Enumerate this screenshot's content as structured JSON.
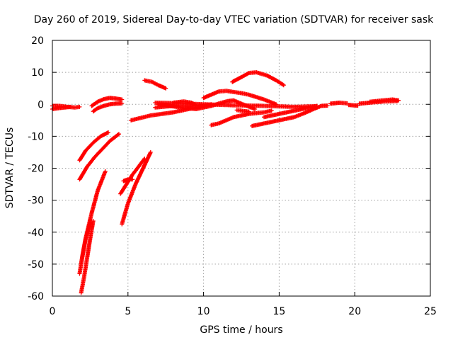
{
  "chart_data": {
    "type": "scatter",
    "title": "Day 260 of 2019, Sidereal Day-to-day VTEC variation (SDTVAR) for receiver sask",
    "xlabel": "GPS time / hours",
    "ylabel": "SDTVAR / TECUs",
    "xlim": [
      0,
      25
    ],
    "ylim": [
      -60,
      20
    ],
    "xticks": [
      0,
      5,
      10,
      15,
      20,
      25
    ],
    "yticks": [
      -60,
      -50,
      -40,
      -30,
      -20,
      -10,
      0,
      10,
      20
    ],
    "grid": true,
    "marker": "+",
    "color": "#ff0000",
    "arcs": [
      [
        [
          0.0,
          -0.5
        ],
        [
          0.5,
          -0.5
        ],
        [
          1.0,
          -0.8
        ],
        [
          1.5,
          -1.0
        ],
        [
          1.8,
          -0.8
        ]
      ],
      [
        [
          0.0,
          -1.5
        ],
        [
          0.4,
          -1.2
        ],
        [
          0.8,
          -1.0
        ],
        [
          1.2,
          -0.8
        ]
      ],
      [
        [
          2.7,
          -2.2
        ],
        [
          3.0,
          -1.2
        ],
        [
          3.4,
          -0.5
        ],
        [
          3.8,
          0.0
        ],
        [
          4.2,
          0.2
        ],
        [
          4.6,
          0.3
        ]
      ],
      [
        [
          2.6,
          -0.5
        ],
        [
          3.0,
          0.8
        ],
        [
          3.4,
          1.6
        ],
        [
          3.8,
          2.0
        ],
        [
          4.2,
          1.8
        ],
        [
          4.6,
          1.5
        ]
      ],
      [
        [
          1.8,
          -17.5
        ],
        [
          2.2,
          -14.5
        ],
        [
          2.7,
          -12.0
        ],
        [
          3.2,
          -10.0
        ],
        [
          3.7,
          -8.8
        ]
      ],
      [
        [
          1.8,
          -23.5
        ],
        [
          2.3,
          -19.5
        ],
        [
          2.8,
          -16.5
        ],
        [
          3.3,
          -14.0
        ],
        [
          3.8,
          -11.5
        ],
        [
          4.4,
          -9.3
        ]
      ],
      [
        [
          1.9,
          -59.0
        ],
        [
          2.1,
          -54.0
        ],
        [
          2.3,
          -48.0
        ],
        [
          2.5,
          -42.0
        ],
        [
          2.7,
          -36.5
        ]
      ],
      [
        [
          1.9,
          -50.0
        ],
        [
          2.2,
          -42.0
        ],
        [
          2.6,
          -34.0
        ],
        [
          3.0,
          -27.0
        ],
        [
          3.5,
          -21.0
        ]
      ],
      [
        [
          1.8,
          -53.0
        ],
        [
          2.0,
          -47.0
        ],
        [
          2.2,
          -42.0
        ],
        [
          2.5,
          -37.0
        ]
      ],
      [
        [
          4.6,
          -37.5
        ],
        [
          5.0,
          -31.0
        ],
        [
          5.5,
          -25.0
        ],
        [
          6.0,
          -20.0
        ],
        [
          6.5,
          -15.0
        ]
      ],
      [
        [
          4.5,
          -28.0
        ],
        [
          4.9,
          -25.0
        ],
        [
          5.3,
          -22.0
        ],
        [
          5.7,
          -19.5
        ],
        [
          6.1,
          -17.0
        ]
      ],
      [
        [
          4.7,
          -24.0
        ],
        [
          5.0,
          -23.5
        ],
        [
          5.3,
          -23.5
        ]
      ],
      [
        [
          6.1,
          7.5
        ],
        [
          6.6,
          7.0
        ],
        [
          7.0,
          6.0
        ],
        [
          7.5,
          5.0
        ]
      ],
      [
        [
          5.2,
          -5.0
        ],
        [
          6.5,
          -3.5
        ],
        [
          8.0,
          -2.5
        ],
        [
          9.5,
          -1.0
        ],
        [
          10.5,
          0.0
        ]
      ],
      [
        [
          6.8,
          -1.0
        ],
        [
          8.0,
          -0.5
        ],
        [
          9.0,
          -0.6
        ],
        [
          10.0,
          -0.3
        ]
      ],
      [
        [
          6.8,
          0.5
        ],
        [
          8.5,
          0.3
        ],
        [
          10.0,
          0.0
        ],
        [
          12.0,
          -0.3
        ],
        [
          14.0,
          -0.5
        ],
        [
          16.0,
          -0.8
        ],
        [
          17.5,
          -0.6
        ]
      ],
      [
        [
          7.0,
          0.0
        ],
        [
          8.5,
          -1.0
        ],
        [
          9.5,
          -1.5
        ],
        [
          10.5,
          -0.5
        ]
      ],
      [
        [
          8.0,
          0.5
        ],
        [
          8.7,
          0.9
        ],
        [
          9.2,
          0.5
        ],
        [
          9.5,
          -0.3
        ]
      ],
      [
        [
          10.0,
          2.0
        ],
        [
          10.5,
          3.0
        ],
        [
          11.0,
          4.0
        ],
        [
          11.5,
          4.2
        ],
        [
          12.5,
          3.5
        ],
        [
          13.0,
          3.0
        ],
        [
          14.0,
          1.5
        ],
        [
          14.8,
          0.0
        ]
      ],
      [
        [
          10.5,
          -0.5
        ],
        [
          11.2,
          0.5
        ],
        [
          11.6,
          1.0
        ],
        [
          12.0,
          1.2
        ],
        [
          12.6,
          0.0
        ],
        [
          13.4,
          -1.5
        ]
      ],
      [
        [
          10.5,
          -6.5
        ],
        [
          11.0,
          -6.0
        ],
        [
          12.0,
          -4.0
        ],
        [
          13.0,
          -3.0
        ],
        [
          14.0,
          -2.5
        ],
        [
          14.5,
          -2.0
        ]
      ],
      [
        [
          12.2,
          -1.8
        ],
        [
          12.5,
          -2.0
        ],
        [
          13.0,
          -2.3
        ]
      ],
      [
        [
          13.2,
          -6.8
        ],
        [
          14.0,
          -6.0
        ],
        [
          15.0,
          -5.0
        ],
        [
          16.0,
          -4.0
        ],
        [
          16.8,
          -2.5
        ],
        [
          17.5,
          -1.0
        ]
      ],
      [
        [
          14.0,
          -4.0
        ],
        [
          15.0,
          -3.0
        ],
        [
          16.0,
          -2.0
        ],
        [
          17.0,
          -1.0
        ],
        [
          17.5,
          -0.5
        ]
      ],
      [
        [
          11.9,
          7.0
        ],
        [
          12.5,
          8.5
        ],
        [
          13.0,
          9.8
        ],
        [
          13.5,
          10.0
        ],
        [
          14.2,
          9.0
        ],
        [
          14.8,
          7.5
        ],
        [
          15.3,
          6.0
        ]
      ],
      [
        [
          17.4,
          -1.2
        ],
        [
          17.8,
          -0.5
        ],
        [
          18.2,
          -0.4
        ]
      ],
      [
        [
          18.4,
          0.2
        ],
        [
          19.0,
          0.5
        ],
        [
          19.5,
          0.3
        ]
      ],
      [
        [
          19.6,
          -0.2
        ],
        [
          20.2,
          -0.4
        ]
      ],
      [
        [
          20.3,
          0.2
        ],
        [
          21.2,
          0.6
        ],
        [
          22.0,
          0.9
        ],
        [
          22.8,
          1.0
        ]
      ],
      [
        [
          21.0,
          0.8
        ],
        [
          21.8,
          1.2
        ],
        [
          22.5,
          1.5
        ],
        [
          22.9,
          1.2
        ]
      ]
    ]
  }
}
